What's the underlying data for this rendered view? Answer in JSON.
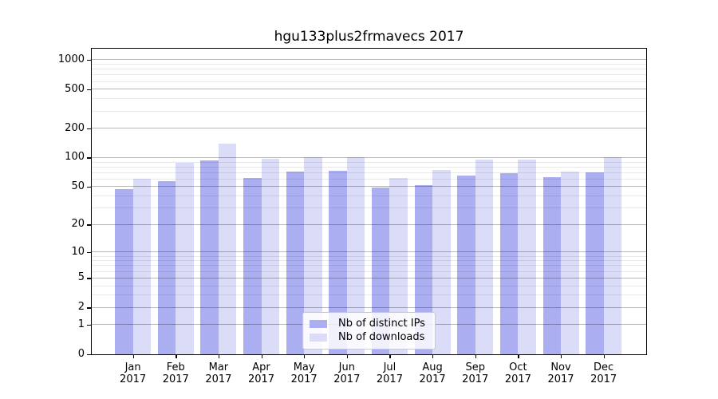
{
  "chart_data": {
    "type": "bar",
    "title": "hgu133plus2frmavecs 2017",
    "categories": [
      "Jan",
      "Feb",
      "Mar",
      "Apr",
      "May",
      "Jun",
      "Jul",
      "Aug",
      "Sep",
      "Oct",
      "Nov",
      "Dec"
    ],
    "x_label_line2": "2017",
    "series": [
      {
        "name": "Nb of distinct IPs",
        "color": "#abaff2",
        "values": [
          47,
          57,
          94,
          62,
          72,
          73,
          49,
          52,
          65,
          69,
          63,
          71
        ]
      },
      {
        "name": "Nb of downloads",
        "color": "#dadcf8",
        "values": [
          60,
          89,
          140,
          98,
          101,
          101,
          62,
          74,
          96,
          96,
          72,
          100
        ]
      }
    ],
    "y_axis": {
      "scale": "log1p",
      "ticks": [
        0,
        1,
        2,
        5,
        10,
        20,
        50,
        100,
        200,
        500,
        1000
      ],
      "minor_gridlines": [
        3,
        4,
        6,
        7,
        8,
        9,
        30,
        40,
        60,
        70,
        80,
        90,
        300,
        400,
        600,
        700,
        800,
        900
      ]
    },
    "legend": {
      "position": "inside-bottom-center",
      "entries": [
        "Nb of distinct IPs",
        "Nb of downloads"
      ]
    },
    "grid": true,
    "background": "#ffffff"
  }
}
